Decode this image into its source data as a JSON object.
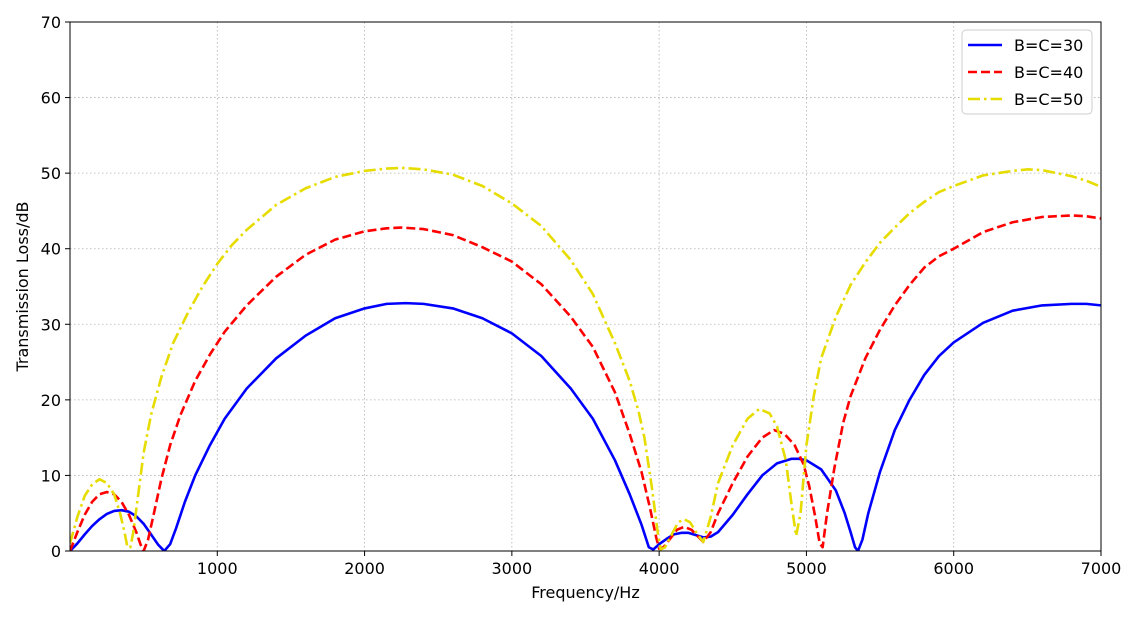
{
  "chart_data": {
    "type": "line",
    "title": "",
    "xlabel": "Frequency/Hz",
    "ylabel": "Transmission Loss/dB",
    "xlim": [
      0,
      7000
    ],
    "ylim": [
      0,
      70
    ],
    "xticks": [
      1000,
      2000,
      3000,
      4000,
      5000,
      6000,
      7000
    ],
    "yticks": [
      0,
      10,
      20,
      30,
      40,
      50,
      60,
      70
    ],
    "grid": true,
    "legend_position": "top-right",
    "series": [
      {
        "name": "B=C=30",
        "color": "#0000ff",
        "style": "solid",
        "points": [
          [
            0,
            0
          ],
          [
            50,
            1
          ],
          [
            100,
            2.2
          ],
          [
            150,
            3.3
          ],
          [
            200,
            4.2
          ],
          [
            250,
            4.9
          ],
          [
            300,
            5.3
          ],
          [
            350,
            5.4
          ],
          [
            400,
            5.2
          ],
          [
            450,
            4.6
          ],
          [
            500,
            3.6
          ],
          [
            550,
            2.2
          ],
          [
            600,
            0.8
          ],
          [
            640,
            0
          ],
          [
            680,
            0.9
          ],
          [
            720,
            3.0
          ],
          [
            780,
            6.5
          ],
          [
            850,
            10
          ],
          [
            950,
            14
          ],
          [
            1050,
            17.5
          ],
          [
            1200,
            21.5
          ],
          [
            1400,
            25.5
          ],
          [
            1600,
            28.5
          ],
          [
            1800,
            30.8
          ],
          [
            2000,
            32.1
          ],
          [
            2150,
            32.7
          ],
          [
            2280,
            32.8
          ],
          [
            2400,
            32.7
          ],
          [
            2600,
            32.1
          ],
          [
            2800,
            30.8
          ],
          [
            3000,
            28.8
          ],
          [
            3200,
            25.8
          ],
          [
            3400,
            21.5
          ],
          [
            3550,
            17.5
          ],
          [
            3700,
            12
          ],
          [
            3800,
            7.5
          ],
          [
            3880,
            3.5
          ],
          [
            3930,
            0.5
          ],
          [
            3960,
            0.2
          ],
          [
            4000,
            0.9
          ],
          [
            4050,
            1.6
          ],
          [
            4100,
            2.2
          ],
          [
            4150,
            2.4
          ],
          [
            4200,
            2.4
          ],
          [
            4250,
            2.1
          ],
          [
            4300,
            1.8
          ],
          [
            4350,
            1.9
          ],
          [
            4400,
            2.5
          ],
          [
            4500,
            4.8
          ],
          [
            4600,
            7.5
          ],
          [
            4700,
            10
          ],
          [
            4800,
            11.6
          ],
          [
            4900,
            12.2
          ],
          [
            4950,
            12.2
          ],
          [
            5000,
            12
          ],
          [
            5100,
            10.8
          ],
          [
            5200,
            8
          ],
          [
            5260,
            5
          ],
          [
            5300,
            2.5
          ],
          [
            5330,
            0.5
          ],
          [
            5350,
            0
          ],
          [
            5380,
            1.5
          ],
          [
            5420,
            5
          ],
          [
            5500,
            10.5
          ],
          [
            5600,
            16
          ],
          [
            5700,
            20
          ],
          [
            5800,
            23.3
          ],
          [
            5900,
            25.8
          ],
          [
            6000,
            27.6
          ],
          [
            6200,
            30.2
          ],
          [
            6400,
            31.8
          ],
          [
            6600,
            32.5
          ],
          [
            6800,
            32.7
          ],
          [
            6900,
            32.7
          ],
          [
            7000,
            32.5
          ]
        ]
      },
      {
        "name": "B=C=40",
        "color": "#ff0000",
        "style": "dashed",
        "points": [
          [
            0,
            0
          ],
          [
            50,
            2.5
          ],
          [
            100,
            4.8
          ],
          [
            150,
            6.5
          ],
          [
            200,
            7.5
          ],
          [
            250,
            7.8
          ],
          [
            300,
            7.5
          ],
          [
            350,
            6.5
          ],
          [
            400,
            4.8
          ],
          [
            450,
            2.5
          ],
          [
            480,
            0.8
          ],
          [
            500,
            0
          ],
          [
            530,
            1.5
          ],
          [
            570,
            5
          ],
          [
            620,
            9.5
          ],
          [
            680,
            14
          ],
          [
            750,
            18
          ],
          [
            850,
            22.5
          ],
          [
            950,
            26
          ],
          [
            1050,
            29
          ],
          [
            1200,
            32.5
          ],
          [
            1400,
            36.3
          ],
          [
            1600,
            39.2
          ],
          [
            1800,
            41.2
          ],
          [
            2000,
            42.3
          ],
          [
            2150,
            42.7
          ],
          [
            2250,
            42.8
          ],
          [
            2400,
            42.6
          ],
          [
            2600,
            41.8
          ],
          [
            2800,
            40.2
          ],
          [
            3000,
            38.3
          ],
          [
            3200,
            35.3
          ],
          [
            3400,
            31
          ],
          [
            3550,
            27
          ],
          [
            3700,
            21
          ],
          [
            3800,
            15.5
          ],
          [
            3880,
            10.5
          ],
          [
            3940,
            5.5
          ],
          [
            3980,
            1.8
          ],
          [
            4000,
            0.3
          ],
          [
            4030,
            0.5
          ],
          [
            4070,
            1.5
          ],
          [
            4120,
            2.8
          ],
          [
            4170,
            3.2
          ],
          [
            4220,
            2.8
          ],
          [
            4270,
            1.8
          ],
          [
            4300,
            1.2
          ],
          [
            4350,
            2.5
          ],
          [
            4400,
            5
          ],
          [
            4500,
            9
          ],
          [
            4600,
            12.5
          ],
          [
            4700,
            15
          ],
          [
            4780,
            16
          ],
          [
            4850,
            15.5
          ],
          [
            4920,
            14
          ],
          [
            4980,
            11.5
          ],
          [
            5020,
            8.5
          ],
          [
            5060,
            4.5
          ],
          [
            5090,
            1
          ],
          [
            5110,
            0.5
          ],
          [
            5140,
            5
          ],
          [
            5190,
            11
          ],
          [
            5250,
            17
          ],
          [
            5300,
            20.5
          ],
          [
            5400,
            25.5
          ],
          [
            5500,
            29.3
          ],
          [
            5600,
            32.5
          ],
          [
            5700,
            35.2
          ],
          [
            5800,
            37.5
          ],
          [
            5900,
            39
          ],
          [
            6000,
            40
          ],
          [
            6200,
            42.2
          ],
          [
            6400,
            43.5
          ],
          [
            6600,
            44.2
          ],
          [
            6800,
            44.4
          ],
          [
            6900,
            44.3
          ],
          [
            7000,
            44
          ]
        ]
      },
      {
        "name": "B=C=50",
        "color": "#e6dc00",
        "style": "dashdot",
        "points": [
          [
            0,
            1
          ],
          [
            50,
            4.5
          ],
          [
            100,
            7.3
          ],
          [
            150,
            8.8
          ],
          [
            200,
            9.5
          ],
          [
            250,
            9
          ],
          [
            300,
            7.5
          ],
          [
            340,
            5
          ],
          [
            370,
            2.5
          ],
          [
            390,
            0.5
          ],
          [
            410,
            0.5
          ],
          [
            430,
            2.5
          ],
          [
            460,
            7
          ],
          [
            500,
            13
          ],
          [
            550,
            18
          ],
          [
            620,
            23
          ],
          [
            700,
            27.5
          ],
          [
            800,
            31.5
          ],
          [
            900,
            35
          ],
          [
            1000,
            38
          ],
          [
            1100,
            40.5
          ],
          [
            1200,
            42.5
          ],
          [
            1400,
            45.8
          ],
          [
            1600,
            48
          ],
          [
            1800,
            49.5
          ],
          [
            2000,
            50.3
          ],
          [
            2150,
            50.6
          ],
          [
            2250,
            50.7
          ],
          [
            2400,
            50.5
          ],
          [
            2600,
            49.8
          ],
          [
            2800,
            48.3
          ],
          [
            3000,
            46
          ],
          [
            3200,
            43
          ],
          [
            3400,
            38.5
          ],
          [
            3550,
            34
          ],
          [
            3700,
            27.5
          ],
          [
            3800,
            22.5
          ],
          [
            3860,
            18.5
          ],
          [
            3900,
            15
          ],
          [
            3950,
            8.5
          ],
          [
            3990,
            2.5
          ],
          [
            4010,
            0.2
          ],
          [
            4040,
            0.5
          ],
          [
            4080,
            2
          ],
          [
            4130,
            3.8
          ],
          [
            4170,
            4.2
          ],
          [
            4210,
            3.8
          ],
          [
            4260,
            2.2
          ],
          [
            4300,
            1.2
          ],
          [
            4350,
            4.5
          ],
          [
            4400,
            9
          ],
          [
            4500,
            14
          ],
          [
            4600,
            17.5
          ],
          [
            4680,
            18.8
          ],
          [
            4750,
            18.2
          ],
          [
            4800,
            16.5
          ],
          [
            4860,
            12
          ],
          [
            4900,
            6
          ],
          [
            4930,
            2
          ],
          [
            4960,
            5
          ],
          [
            5000,
            14
          ],
          [
            5050,
            20.5
          ],
          [
            5100,
            25.5
          ],
          [
            5200,
            31
          ],
          [
            5300,
            35.2
          ],
          [
            5400,
            38.2
          ],
          [
            5500,
            40.8
          ],
          [
            5600,
            42.8
          ],
          [
            5700,
            44.7
          ],
          [
            5800,
            46.2
          ],
          [
            5900,
            47.5
          ],
          [
            6000,
            48.3
          ],
          [
            6200,
            49.7
          ],
          [
            6400,
            50.3
          ],
          [
            6500,
            50.5
          ],
          [
            6600,
            50.4
          ],
          [
            6800,
            49.6
          ],
          [
            6900,
            49
          ],
          [
            7000,
            48.2
          ]
        ]
      }
    ]
  }
}
